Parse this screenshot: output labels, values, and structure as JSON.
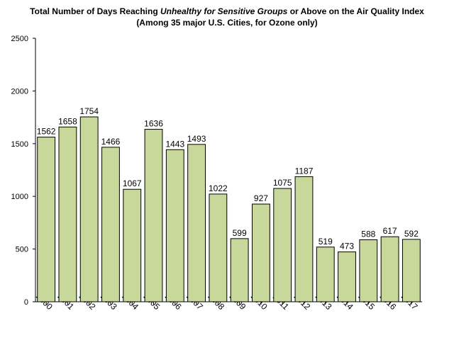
{
  "title": {
    "line1_prefix": "Total Number of Days Reaching ",
    "line1_emphasis": "Unhealthy for Sensitive Groups",
    "line1_suffix": " or Above on the Air Quality Index",
    "line2": "(Among 35 major U.S. Cities, for Ozone only)"
  },
  "chart_data": {
    "type": "bar",
    "categories": [
      "2000",
      "2001",
      "2002",
      "2003",
      "2004",
      "2005",
      "2006",
      "2007",
      "2008",
      "2009",
      "2010",
      "2011",
      "2012",
      "2013",
      "2014",
      "2015",
      "2016",
      "2017"
    ],
    "values": [
      1562,
      1658,
      1754,
      1466,
      1067,
      1636,
      1443,
      1493,
      1022,
      599,
      927,
      1075,
      1187,
      519,
      473,
      588,
      617,
      592
    ],
    "ylim": [
      0,
      2500
    ],
    "yticks": [
      0,
      500,
      1000,
      1500,
      2000,
      2500
    ],
    "grid": false,
    "legend": "none",
    "data_labels": true,
    "xlabel": "",
    "ylabel": "",
    "colors": {
      "bar_fill": "#c8d89b",
      "bar_stroke": "#000000",
      "axis": "#000000"
    }
  }
}
